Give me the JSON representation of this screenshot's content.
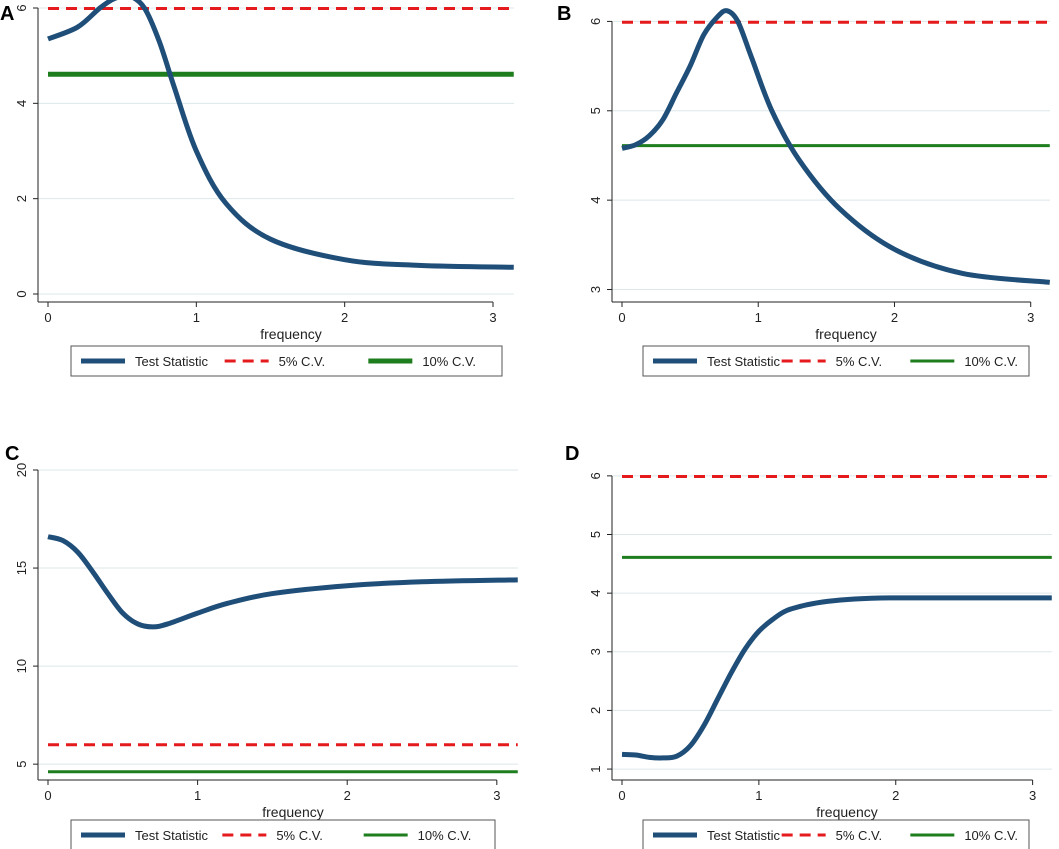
{
  "colors": {
    "test_statistic": "#1f4e79",
    "cv5": "#e41a1c",
    "cv10": "#1e7e1e",
    "grid": "#dde7ea",
    "axis": "#222222"
  },
  "legend": {
    "test_statistic": "Test Statistic",
    "cv5": "5% C.V.",
    "cv10": "10% C.V."
  },
  "chart_data": [
    {
      "panel": "A",
      "type": "line",
      "xlabel": "frequency",
      "ylabel": "",
      "xlim": [
        0,
        3.14159
      ],
      "ylim": [
        0,
        6
      ],
      "xticks": [
        0,
        1,
        2,
        3
      ],
      "yticks": [
        0,
        2,
        4,
        6
      ],
      "grid": true,
      "series": [
        {
          "name": "Test Statistic",
          "style": "solid-thick",
          "x": [
            0,
            0.2,
            0.35,
            0.45,
            0.55,
            0.65,
            0.75,
            0.85,
            1.0,
            1.2,
            1.5,
            2.0,
            2.5,
            3.14
          ],
          "y": [
            5.35,
            5.6,
            6.0,
            6.2,
            6.25,
            6.0,
            5.3,
            4.35,
            3.0,
            1.9,
            1.15,
            0.72,
            0.6,
            0.56
          ]
        },
        {
          "name": "5% C.V.",
          "style": "dashed",
          "x": [
            0,
            3.14
          ],
          "y": [
            5.99,
            5.99
          ]
        },
        {
          "name": "10% C.V.",
          "style": "solid-thick",
          "x": [
            0,
            3.14
          ],
          "y": [
            4.61,
            4.61
          ]
        }
      ]
    },
    {
      "panel": "B",
      "type": "line",
      "xlabel": "frequency",
      "ylabel": "",
      "xlim": [
        0,
        3.14159
      ],
      "ylim": [
        2.95,
        6.15
      ],
      "xticks": [
        0,
        1,
        2,
        3
      ],
      "yticks": [
        3,
        4,
        5,
        6
      ],
      "grid": true,
      "series": [
        {
          "name": "Test Statistic",
          "style": "solid-thick",
          "x": [
            0,
            0.1,
            0.2,
            0.3,
            0.4,
            0.5,
            0.6,
            0.7,
            0.77,
            0.85,
            0.95,
            1.1,
            1.3,
            1.6,
            2.0,
            2.5,
            3.14
          ],
          "y": [
            4.58,
            4.62,
            4.72,
            4.9,
            5.2,
            5.5,
            5.85,
            6.05,
            6.12,
            6.0,
            5.6,
            5.0,
            4.45,
            3.9,
            3.45,
            3.18,
            3.08
          ]
        },
        {
          "name": "5% C.V.",
          "style": "dashed",
          "x": [
            0,
            3.14
          ],
          "y": [
            5.99,
            5.99
          ]
        },
        {
          "name": "10% C.V.",
          "style": "solid",
          "x": [
            0,
            3.14
          ],
          "y": [
            4.61,
            4.61
          ]
        }
      ]
    },
    {
      "panel": "C",
      "type": "line",
      "xlabel": "frequency",
      "ylabel": "",
      "xlim": [
        0,
        3.14159
      ],
      "ylim": [
        4.6,
        20
      ],
      "xticks": [
        0,
        1,
        2,
        3
      ],
      "yticks": [
        5,
        10,
        15,
        20
      ],
      "grid": true,
      "series": [
        {
          "name": "Test Statistic",
          "style": "solid-thick",
          "x": [
            0,
            0.1,
            0.2,
            0.3,
            0.4,
            0.5,
            0.6,
            0.7,
            0.8,
            1.0,
            1.2,
            1.5,
            2.0,
            2.5,
            3.14
          ],
          "y": [
            16.6,
            16.4,
            15.8,
            14.8,
            13.7,
            12.7,
            12.15,
            12.0,
            12.15,
            12.7,
            13.2,
            13.7,
            14.1,
            14.3,
            14.4
          ]
        },
        {
          "name": "5% C.V.",
          "style": "dashed",
          "x": [
            0,
            3.14
          ],
          "y": [
            5.99,
            5.99
          ]
        },
        {
          "name": "10% C.V.",
          "style": "solid",
          "x": [
            0,
            3.14
          ],
          "y": [
            4.61,
            4.61
          ]
        }
      ]
    },
    {
      "panel": "D",
      "type": "line",
      "xlabel": "frequency",
      "ylabel": "",
      "xlim": [
        0,
        3.14159
      ],
      "ylim": [
        0.95,
        6.1
      ],
      "xticks": [
        0,
        1,
        2,
        3
      ],
      "yticks": [
        1,
        2,
        3,
        4,
        5,
        6
      ],
      "grid": true,
      "series": [
        {
          "name": "Test Statistic",
          "style": "solid-thick",
          "x": [
            0,
            0.1,
            0.2,
            0.3,
            0.4,
            0.5,
            0.6,
            0.7,
            0.8,
            0.9,
            1.0,
            1.1,
            1.2,
            1.35,
            1.5,
            1.7,
            2.0,
            2.5,
            3.14
          ],
          "y": [
            1.25,
            1.24,
            1.2,
            1.19,
            1.22,
            1.4,
            1.75,
            2.2,
            2.65,
            3.05,
            3.35,
            3.55,
            3.7,
            3.8,
            3.86,
            3.9,
            3.92,
            3.92,
            3.92
          ]
        },
        {
          "name": "5% C.V.",
          "style": "dashed",
          "x": [
            0,
            3.14
          ],
          "y": [
            5.99,
            5.99
          ]
        },
        {
          "name": "10% C.V.",
          "style": "solid",
          "x": [
            0,
            3.14
          ],
          "y": [
            4.61,
            4.61
          ]
        }
      ]
    }
  ]
}
